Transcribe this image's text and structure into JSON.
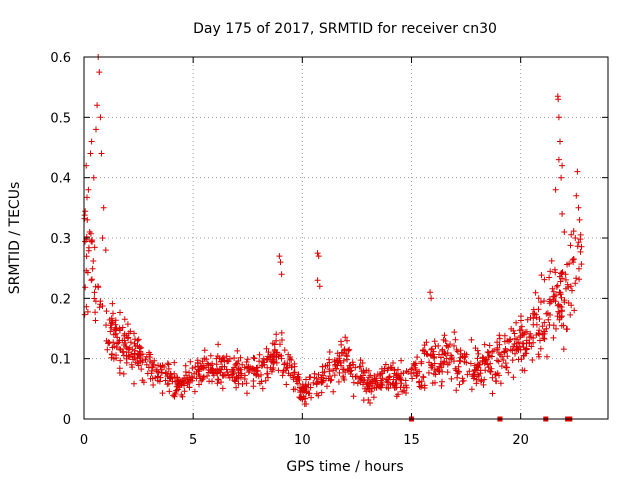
{
  "chart_data": {
    "type": "scatter",
    "title": "Day 175 of 2017, SRMTID for receiver cn30",
    "xlabel": "GPS time / hours",
    "ylabel": "SRMTID / TECUs",
    "xlim": [
      0,
      24
    ],
    "ylim": [
      0,
      0.6
    ],
    "xticks": [
      0,
      5,
      10,
      15,
      20
    ],
    "xtick_labels": [
      "0",
      "5",
      "10",
      "15",
      "20"
    ],
    "yticks": [
      0,
      0.1,
      0.2,
      0.3,
      0.4,
      0.5,
      0.6
    ],
    "ytick_labels": [
      "0",
      "0.1",
      "0.2",
      "0.3",
      "0.4",
      "0.5",
      "0.6"
    ],
    "grid": true,
    "marker": "+",
    "color": "#dd0000",
    "trend": {
      "x": [
        0,
        0.5,
        1,
        1.5,
        2,
        2.5,
        3,
        3.5,
        4,
        4.5,
        5,
        5.5,
        6,
        6.5,
        7,
        7.5,
        8,
        8.5,
        9,
        9.5,
        10,
        10.5,
        11,
        11.5,
        12,
        12.5,
        13,
        13.5,
        14,
        14.5,
        15,
        15.5,
        16,
        16.5,
        17,
        17.5,
        18,
        18.5,
        19,
        19.5,
        20,
        20.5,
        21,
        21.5,
        22,
        22.5,
        22.8
      ],
      "y": [
        0.3,
        0.22,
        0.16,
        0.13,
        0.12,
        0.11,
        0.09,
        0.08,
        0.06,
        0.06,
        0.07,
        0.08,
        0.09,
        0.085,
        0.08,
        0.075,
        0.08,
        0.09,
        0.11,
        0.08,
        0.04,
        0.06,
        0.07,
        0.09,
        0.1,
        0.07,
        0.06,
        0.065,
        0.07,
        0.065,
        0.08,
        0.09,
        0.1,
        0.1,
        0.095,
        0.09,
        0.085,
        0.09,
        0.1,
        0.11,
        0.12,
        0.14,
        0.17,
        0.19,
        0.2,
        0.24,
        0.26
      ]
    },
    "scatter_fraction": 0.38,
    "points_per_hour": 52,
    "outliers": [
      {
        "x": 0.35,
        "y": 0.46
      },
      {
        "x": 0.6,
        "y": 0.52
      },
      {
        "x": 0.65,
        "y": 0.6
      },
      {
        "x": 0.7,
        "y": 0.575
      },
      {
        "x": 0.75,
        "y": 0.5
      },
      {
        "x": 0.55,
        "y": 0.48
      },
      {
        "x": 0.3,
        "y": 0.44
      },
      {
        "x": 0.8,
        "y": 0.44
      },
      {
        "x": 0.1,
        "y": 0.42
      },
      {
        "x": 0.45,
        "y": 0.4
      },
      {
        "x": 0.2,
        "y": 0.38
      },
      {
        "x": 0.85,
        "y": 0.3
      },
      {
        "x": 0.15,
        "y": 0.33
      },
      {
        "x": 0.9,
        "y": 0.35
      },
      {
        "x": 1.0,
        "y": 0.28
      },
      {
        "x": 8.95,
        "y": 0.27
      },
      {
        "x": 9.0,
        "y": 0.26
      },
      {
        "x": 9.05,
        "y": 0.24
      },
      {
        "x": 10.7,
        "y": 0.275
      },
      {
        "x": 10.75,
        "y": 0.27
      },
      {
        "x": 10.7,
        "y": 0.23
      },
      {
        "x": 10.8,
        "y": 0.22
      },
      {
        "x": 15.85,
        "y": 0.21
      },
      {
        "x": 15.9,
        "y": 0.2
      },
      {
        "x": 21.7,
        "y": 0.535
      },
      {
        "x": 21.72,
        "y": 0.53
      },
      {
        "x": 21.75,
        "y": 0.5
      },
      {
        "x": 21.8,
        "y": 0.46
      },
      {
        "x": 21.75,
        "y": 0.43
      },
      {
        "x": 21.9,
        "y": 0.42
      },
      {
        "x": 21.85,
        "y": 0.4
      },
      {
        "x": 21.6,
        "y": 0.38
      },
      {
        "x": 22.6,
        "y": 0.41
      },
      {
        "x": 22.55,
        "y": 0.37
      },
      {
        "x": 22.65,
        "y": 0.35
      },
      {
        "x": 22.7,
        "y": 0.33
      },
      {
        "x": 22.5,
        "y": 0.3
      },
      {
        "x": 22.4,
        "y": 0.26
      },
      {
        "x": 21.9,
        "y": 0.34
      },
      {
        "x": 22.0,
        "y": 0.31
      },
      {
        "x": 22.3,
        "y": 0.22
      },
      {
        "x": 22.45,
        "y": 0.18
      }
    ],
    "gaps": [
      [
        0.9,
        1.0
      ],
      [
        22.8,
        24
      ]
    ],
    "zero_markers_x": [
      15.0,
      19.05,
      21.15,
      22.15,
      22.25
    ]
  }
}
